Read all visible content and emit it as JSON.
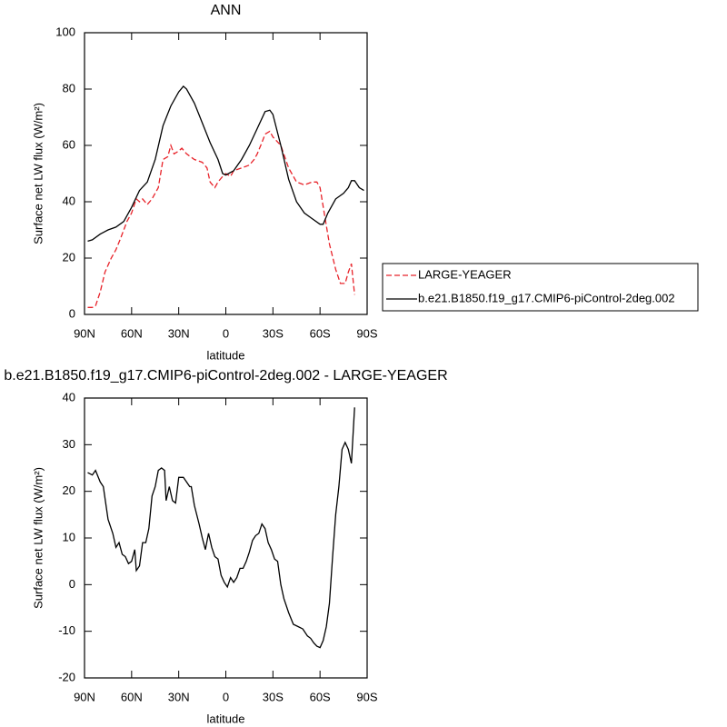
{
  "chart_data": [
    {
      "type": "line",
      "title": "ANN",
      "xlabel": "latitude",
      "ylabel": "Surface net LW flux (W/m²)",
      "xlim": [
        90,
        -90
      ],
      "xticks": [
        {
          "value": 90,
          "label": "90N"
        },
        {
          "value": 60,
          "label": "60N"
        },
        {
          "value": 30,
          "label": "30N"
        },
        0,
        {
          "value": -30,
          "label": "30S"
        },
        {
          "value": -60,
          "label": "60S"
        },
        {
          "value": -90,
          "label": "90S"
        }
      ],
      "ylim": [
        0,
        100
      ],
      "yticks": [
        0,
        20,
        40,
        60,
        80,
        100
      ],
      "legend": "right",
      "series": [
        {
          "name": "LARGE-YEAGER",
          "color": "#e8232a",
          "dashed": true,
          "x": [
            88,
            85,
            83,
            80,
            77,
            73,
            70,
            67,
            63,
            60,
            57,
            55,
            53,
            50,
            47,
            43,
            40,
            37,
            35,
            33,
            30,
            28,
            25,
            20,
            15,
            12,
            10,
            7,
            5,
            2,
            0,
            -3,
            -5,
            -10,
            -15,
            -18,
            -20,
            -23,
            -25,
            -28,
            -30,
            -35,
            -40,
            -45,
            -50,
            -55,
            -58,
            -60,
            -63,
            -66,
            -70,
            -73,
            -76,
            -78,
            -80,
            -82
          ],
          "values": [
            2.5,
            2.5,
            3,
            8,
            15,
            20,
            23,
            27,
            33,
            36,
            41,
            40,
            41,
            39,
            41,
            45,
            55,
            56,
            60,
            57,
            58,
            59,
            57,
            55,
            54,
            52,
            47,
            45,
            47,
            49,
            50,
            49,
            51,
            52,
            53,
            55,
            57,
            61,
            64,
            65,
            63,
            60,
            52,
            47,
            46,
            47,
            47,
            45,
            35,
            25,
            16,
            11,
            11,
            15,
            18,
            7
          ]
        },
        {
          "name": "b.e21.B1850.f19_g17.CMIP6-piControl-2deg.002",
          "color": "#000000",
          "dashed": false,
          "x": [
            88,
            85,
            80,
            75,
            70,
            65,
            60,
            55,
            50,
            45,
            40,
            35,
            30,
            27,
            25,
            20,
            15,
            10,
            5,
            2,
            0,
            -5,
            -10,
            -15,
            -20,
            -25,
            -28,
            -30,
            -35,
            -40,
            -45,
            -50,
            -55,
            -60,
            -62,
            -65,
            -70,
            -75,
            -78,
            -80,
            -82,
            -85,
            -88
          ],
          "values": [
            26,
            26.5,
            28.5,
            30,
            31,
            33,
            38,
            44,
            47,
            55,
            67,
            74,
            79,
            81,
            80,
            75,
            68,
            61,
            55,
            50,
            49.5,
            51,
            55,
            60,
            66,
            72,
            72.5,
            71,
            60,
            48,
            40,
            36,
            34,
            32,
            32,
            36,
            41,
            43,
            45,
            47.5,
            47.5,
            45,
            44
          ]
        }
      ]
    },
    {
      "type": "line",
      "title": "b.e21.B1850.f19_g17.CMIP6-piControl-2deg.002 - LARGE-YEAGER",
      "xlabel": "latitude",
      "ylabel": "Surface net LW flux (W/m²)",
      "xlim": [
        90,
        -90
      ],
      "xticks": [
        {
          "value": 90,
          "label": "90N"
        },
        {
          "value": 60,
          "label": "60N"
        },
        {
          "value": 30,
          "label": "30N"
        },
        0,
        {
          "value": -30,
          "label": "30S"
        },
        {
          "value": -60,
          "label": "60S"
        },
        {
          "value": -90,
          "label": "90S"
        }
      ],
      "ylim": [
        -20,
        40
      ],
      "yticks": [
        -20,
        -10,
        0,
        10,
        20,
        30,
        40
      ],
      "series": [
        {
          "color": "#000000",
          "dashed": false,
          "x": [
            88,
            85,
            83,
            80,
            78,
            75,
            72,
            70,
            68,
            66,
            64,
            62,
            60,
            58,
            57,
            55,
            53,
            51,
            49,
            47,
            45,
            43,
            41,
            39,
            38,
            36,
            34,
            32,
            30,
            27,
            25,
            23,
            22,
            20,
            17,
            15,
            13,
            11,
            9,
            7,
            5,
            3,
            1,
            -1,
            -3,
            -5,
            -7,
            -9,
            -11,
            -13,
            -15,
            -17,
            -19,
            -21,
            -23,
            -25,
            -27,
            -29,
            -31,
            -33,
            -35,
            -37,
            -40,
            -43,
            -46,
            -49,
            -52,
            -54,
            -56,
            -58,
            -60,
            -62,
            -64,
            -66,
            -68,
            -70,
            -72,
            -74,
            -76,
            -78,
            -80,
            -82
          ],
          "values": [
            24,
            23.5,
            24.5,
            22,
            21,
            14,
            11,
            8,
            9,
            6.5,
            6,
            4.5,
            5,
            7.5,
            3,
            4,
            9,
            9,
            12,
            19,
            21,
            24.5,
            25,
            24.5,
            18,
            21,
            18,
            17.5,
            23,
            23,
            22,
            21,
            21,
            17,
            13,
            10,
            7.5,
            11,
            8,
            6,
            5.5,
            2,
            0.5,
            -0.5,
            1.5,
            0.5,
            1.5,
            3.5,
            3.5,
            5,
            7,
            9.5,
            10.5,
            11,
            13,
            12,
            9,
            7.5,
            5.5,
            5,
            0,
            -3,
            -6,
            -8.5,
            -9,
            -9.5,
            -11,
            -11.5,
            -12.5,
            -13.2,
            -13.5,
            -12,
            -9,
            -4,
            6,
            15,
            21,
            29,
            30.5,
            29,
            26,
            38
          ]
        }
      ]
    }
  ]
}
